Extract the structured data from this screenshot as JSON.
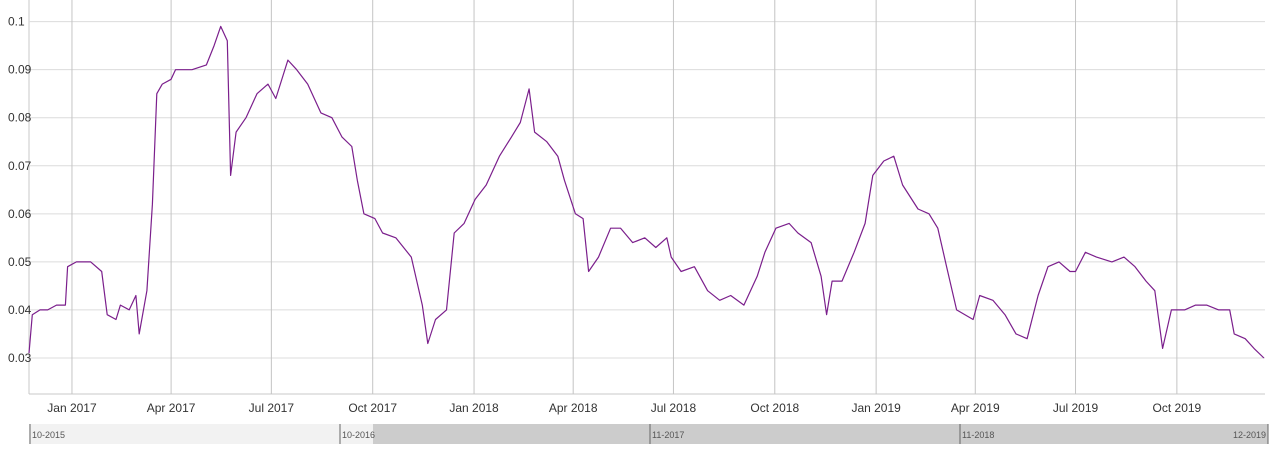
{
  "chart_data": {
    "type": "line",
    "title": "",
    "xlabel": "",
    "ylabel": "",
    "x_range": [
      "2016-11-23",
      "2019-12-20"
    ],
    "ylim": [
      0.0225,
      0.1045
    ],
    "y_ticks": [
      0.03,
      0.04,
      0.05,
      0.06,
      0.07,
      0.08,
      0.09,
      0.1
    ],
    "y_tick_labels": [
      "0.03",
      "0.04",
      "0.05",
      "0.06",
      "0.07",
      "0.08",
      "0.09",
      "0.1"
    ],
    "x_ticks": [
      "2017-01-01",
      "2017-04-01",
      "2017-07-01",
      "2017-10-01",
      "2018-01-01",
      "2018-04-01",
      "2018-07-01",
      "2018-10-01",
      "2019-01-01",
      "2019-04-01",
      "2019-07-01",
      "2019-10-01"
    ],
    "x_tick_labels": [
      "Jan 2017",
      "Apr 2017",
      "Jul 2017",
      "Oct 2017",
      "Jan 2018",
      "Apr 2018",
      "Jul 2018",
      "Oct 2018",
      "Jan 2019",
      "Apr 2019",
      "Jul 2019",
      "Oct 2019"
    ],
    "grid": true,
    "legend": "none",
    "series": [
      {
        "color": "#7b1f8c",
        "points": [
          [
            "2016-11-23",
            0.031
          ],
          [
            "2016-11-26",
            0.039
          ],
          [
            "2016-12-03",
            0.04
          ],
          [
            "2016-12-10",
            0.04
          ],
          [
            "2016-12-18",
            0.041
          ],
          [
            "2016-12-26",
            0.041
          ],
          [
            "2016-12-28",
            0.049
          ],
          [
            "2017-01-05",
            0.05
          ],
          [
            "2017-01-18",
            0.05
          ],
          [
            "2017-01-28",
            0.048
          ],
          [
            "2017-02-02",
            0.039
          ],
          [
            "2017-02-10",
            0.038
          ],
          [
            "2017-02-14",
            0.041
          ],
          [
            "2017-02-22",
            0.04
          ],
          [
            "2017-02-28",
            0.043
          ],
          [
            "2017-03-03",
            0.035
          ],
          [
            "2017-03-10",
            0.044
          ],
          [
            "2017-03-15",
            0.062
          ],
          [
            "2017-03-19",
            0.085
          ],
          [
            "2017-03-24",
            0.087
          ],
          [
            "2017-04-01",
            0.088
          ],
          [
            "2017-04-05",
            0.09
          ],
          [
            "2017-04-20",
            0.09
          ],
          [
            "2017-05-03",
            0.091
          ],
          [
            "2017-05-10",
            0.095
          ],
          [
            "2017-05-16",
            0.099
          ],
          [
            "2017-05-22",
            0.096
          ],
          [
            "2017-05-25",
            0.068
          ],
          [
            "2017-05-30",
            0.077
          ],
          [
            "2017-06-08",
            0.08
          ],
          [
            "2017-06-18",
            0.085
          ],
          [
            "2017-06-28",
            0.087
          ],
          [
            "2017-07-05",
            0.084
          ],
          [
            "2017-07-16",
            0.092
          ],
          [
            "2017-07-24",
            0.09
          ],
          [
            "2017-08-03",
            0.087
          ],
          [
            "2017-08-15",
            0.081
          ],
          [
            "2017-08-25",
            0.08
          ],
          [
            "2017-09-03",
            0.076
          ],
          [
            "2017-09-12",
            0.074
          ],
          [
            "2017-09-17",
            0.067
          ],
          [
            "2017-09-23",
            0.06
          ],
          [
            "2017-10-03",
            0.059
          ],
          [
            "2017-10-10",
            0.056
          ],
          [
            "2017-10-22",
            0.055
          ],
          [
            "2017-11-05",
            0.051
          ],
          [
            "2017-11-15",
            0.041
          ],
          [
            "2017-11-20",
            0.033
          ],
          [
            "2017-11-27",
            0.038
          ],
          [
            "2017-12-07",
            0.04
          ],
          [
            "2017-12-14",
            0.056
          ],
          [
            "2017-12-23",
            0.058
          ],
          [
            "2018-01-02",
            0.063
          ],
          [
            "2018-01-12",
            0.066
          ],
          [
            "2018-01-24",
            0.072
          ],
          [
            "2018-02-04",
            0.076
          ],
          [
            "2018-02-12",
            0.079
          ],
          [
            "2018-02-20",
            0.086
          ],
          [
            "2018-02-25",
            0.077
          ],
          [
            "2018-03-08",
            0.075
          ],
          [
            "2018-03-18",
            0.072
          ],
          [
            "2018-03-24",
            0.067
          ],
          [
            "2018-04-03",
            0.06
          ],
          [
            "2018-04-10",
            0.059
          ],
          [
            "2018-04-15",
            0.048
          ],
          [
            "2018-04-24",
            0.051
          ],
          [
            "2018-05-05",
            0.057
          ],
          [
            "2018-05-14",
            0.057
          ],
          [
            "2018-05-25",
            0.054
          ],
          [
            "2018-06-05",
            0.055
          ],
          [
            "2018-06-15",
            0.053
          ],
          [
            "2018-06-25",
            0.055
          ],
          [
            "2018-06-29",
            0.051
          ],
          [
            "2018-07-08",
            0.048
          ],
          [
            "2018-07-20",
            0.049
          ],
          [
            "2018-08-01",
            0.044
          ],
          [
            "2018-08-12",
            0.042
          ],
          [
            "2018-08-22",
            0.043
          ],
          [
            "2018-09-03",
            0.041
          ],
          [
            "2018-09-15",
            0.047
          ],
          [
            "2018-09-22",
            0.052
          ],
          [
            "2018-10-02",
            0.057
          ],
          [
            "2018-10-14",
            0.058
          ],
          [
            "2018-10-22",
            0.056
          ],
          [
            "2018-11-03",
            0.054
          ],
          [
            "2018-11-12",
            0.047
          ],
          [
            "2018-11-17",
            0.039
          ],
          [
            "2018-11-22",
            0.046
          ],
          [
            "2018-12-01",
            0.046
          ],
          [
            "2018-12-12",
            0.052
          ],
          [
            "2018-12-22",
            0.058
          ],
          [
            "2018-12-29",
            0.068
          ],
          [
            "2019-01-08",
            0.071
          ],
          [
            "2019-01-17",
            0.072
          ],
          [
            "2019-01-25",
            0.066
          ],
          [
            "2019-02-08",
            0.061
          ],
          [
            "2019-02-18",
            0.06
          ],
          [
            "2019-02-26",
            0.057
          ],
          [
            "2019-03-06",
            0.049
          ],
          [
            "2019-03-15",
            0.04
          ],
          [
            "2019-03-30",
            0.038
          ],
          [
            "2019-04-05",
            0.043
          ],
          [
            "2019-04-17",
            0.042
          ],
          [
            "2019-04-28",
            0.039
          ],
          [
            "2019-05-08",
            0.035
          ],
          [
            "2019-05-18",
            0.034
          ],
          [
            "2019-05-28",
            0.043
          ],
          [
            "2019-06-06",
            0.049
          ],
          [
            "2019-06-16",
            0.05
          ],
          [
            "2019-06-26",
            0.048
          ],
          [
            "2019-07-01",
            0.048
          ],
          [
            "2019-07-10",
            0.052
          ],
          [
            "2019-07-20",
            0.051
          ],
          [
            "2019-08-03",
            0.05
          ],
          [
            "2019-08-14",
            0.051
          ],
          [
            "2019-08-24",
            0.049
          ],
          [
            "2019-09-03",
            0.046
          ],
          [
            "2019-09-11",
            0.044
          ],
          [
            "2019-09-18",
            0.032
          ],
          [
            "2019-09-26",
            0.04
          ],
          [
            "2019-10-08",
            0.04
          ],
          [
            "2019-10-18",
            0.041
          ],
          [
            "2019-10-28",
            0.041
          ],
          [
            "2019-11-08",
            0.04
          ],
          [
            "2019-11-18",
            0.04
          ],
          [
            "2019-11-22",
            0.035
          ],
          [
            "2019-12-02",
            0.034
          ],
          [
            "2019-12-10",
            0.032
          ],
          [
            "2019-12-19",
            0.03
          ]
        ]
      }
    ]
  },
  "navigator": {
    "labels": [
      "10-2015",
      "10-2016",
      "11-2017",
      "11-2018",
      "12-2019"
    ],
    "selected_range": [
      "2016-11-23",
      "2019-12-20"
    ]
  },
  "colors": {
    "line": "#7b1f8c",
    "grid": "#dcdcdc",
    "navigator_selected": "#cccccc",
    "navigator_unselected": "#f2f2f2"
  }
}
